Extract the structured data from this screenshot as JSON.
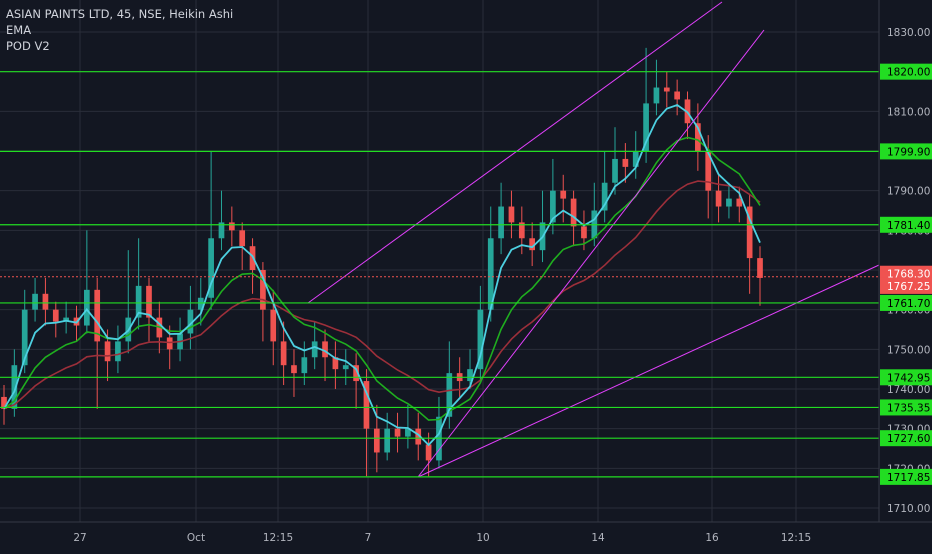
{
  "legend": {
    "symbol_line": "ASIAN PAINTS LTD, 45, NSE, Heikin Ashi",
    "indicator_1": "EMA",
    "indicator_2": "POD V2"
  },
  "colors": {
    "background": "#131722",
    "grid": "#2a2e39",
    "up": "#26a69a",
    "down": "#ef5350",
    "level": "#22dd22",
    "channel": "#e040fb",
    "ema_fast": "#4dd0e1",
    "ema_mid": "#1fae1f",
    "ema_slow": "#9c2f3a",
    "price_line": "#ef5350"
  },
  "chart_data": {
    "type": "candlestick",
    "x_tick_labels": [
      "27",
      "Oct",
      "12:15",
      "7",
      "10",
      "14",
      "16",
      "12:15"
    ],
    "y_tick_labels": [
      "1830.00",
      "1820.00",
      "1810.00",
      "1800.00",
      "1790.00",
      "1780.00",
      "1770.00",
      "1760.00",
      "1750.00",
      "1740.00",
      "1730.00",
      "1720.00",
      "1710.00"
    ],
    "ylim": [
      1706,
      1836
    ],
    "grid": true,
    "horizontal_levels": [
      {
        "value": 1820.0,
        "label": "1820.00"
      },
      {
        "value": 1799.9,
        "label": "1799.90"
      },
      {
        "value": 1781.4,
        "label": "1781.40"
      },
      {
        "value": 1761.7,
        "label": "1761.70"
      },
      {
        "value": 1742.95,
        "label": "1742.95"
      },
      {
        "value": 1735.35,
        "label": "1735.35"
      },
      {
        "value": 1727.6,
        "label": "1727.60"
      },
      {
        "value": 1717.85,
        "label": "1717.85"
      }
    ],
    "last_price": {
      "value": 1768.3,
      "label": "1768.30"
    },
    "secondary_price": {
      "value": 1767.25,
      "label": "1767.25"
    },
    "candles": [
      [
        1738,
        1735,
        1741,
        1731
      ],
      [
        1735,
        1746,
        1750,
        1733
      ],
      [
        1746,
        1760,
        1765,
        1744
      ],
      [
        1760,
        1764,
        1768,
        1757
      ],
      [
        1764,
        1760,
        1768,
        1756
      ],
      [
        1760,
        1757,
        1762,
        1753
      ],
      [
        1757,
        1758,
        1762,
        1754
      ],
      [
        1758,
        1756,
        1761,
        1752
      ],
      [
        1756,
        1765,
        1780,
        1754
      ],
      [
        1765,
        1752,
        1768,
        1735
      ],
      [
        1752,
        1747,
        1755,
        1742
      ],
      [
        1747,
        1752,
        1756,
        1744
      ],
      [
        1752,
        1758,
        1775,
        1749
      ],
      [
        1758,
        1766,
        1778,
        1755
      ],
      [
        1766,
        1758,
        1768,
        1752
      ],
      [
        1758,
        1753,
        1762,
        1749
      ],
      [
        1753,
        1750,
        1756,
        1745
      ],
      [
        1750,
        1754,
        1758,
        1747
      ],
      [
        1754,
        1760,
        1766,
        1750
      ],
      [
        1760,
        1763,
        1768,
        1756
      ],
      [
        1763,
        1778,
        1800,
        1760
      ],
      [
        1778,
        1782,
        1790,
        1775
      ],
      [
        1782,
        1780,
        1786,
        1776
      ],
      [
        1780,
        1776,
        1782,
        1770
      ],
      [
        1776,
        1770,
        1778,
        1764
      ],
      [
        1770,
        1760,
        1772,
        1752
      ],
      [
        1760,
        1752,
        1765,
        1746
      ],
      [
        1752,
        1746,
        1757,
        1741
      ],
      [
        1746,
        1744,
        1750,
        1738
      ],
      [
        1744,
        1748,
        1752,
        1741
      ],
      [
        1748,
        1752,
        1757,
        1745
      ],
      [
        1752,
        1748,
        1755,
        1742
      ],
      [
        1748,
        1745,
        1752,
        1740
      ],
      [
        1745,
        1746,
        1750,
        1741
      ],
      [
        1746,
        1742,
        1749,
        1735
      ],
      [
        1742,
        1730,
        1745,
        1718
      ],
      [
        1730,
        1724,
        1736,
        1719
      ],
      [
        1724,
        1730,
        1734,
        1722
      ],
      [
        1730,
        1728,
        1734,
        1724
      ],
      [
        1728,
        1730,
        1736,
        1725
      ],
      [
        1730,
        1726,
        1734,
        1722
      ],
      [
        1726,
        1722,
        1729,
        1718
      ],
      [
        1722,
        1733,
        1738,
        1720
      ],
      [
        1733,
        1744,
        1752,
        1730
      ],
      [
        1744,
        1742,
        1748,
        1738
      ],
      [
        1742,
        1745,
        1750,
        1740
      ],
      [
        1745,
        1760,
        1766,
        1742
      ],
      [
        1760,
        1778,
        1786,
        1757
      ],
      [
        1778,
        1786,
        1792,
        1774
      ],
      [
        1786,
        1782,
        1790,
        1778
      ],
      [
        1782,
        1778,
        1786,
        1774
      ],
      [
        1778,
        1775,
        1782,
        1771
      ],
      [
        1775,
        1782,
        1790,
        1772
      ],
      [
        1782,
        1790,
        1798,
        1779
      ],
      [
        1790,
        1788,
        1794,
        1782
      ],
      [
        1788,
        1781,
        1790,
        1776
      ],
      [
        1781,
        1778,
        1785,
        1775
      ],
      [
        1778,
        1785,
        1792,
        1776
      ],
      [
        1785,
        1792,
        1800,
        1782
      ],
      [
        1792,
        1798,
        1806,
        1789
      ],
      [
        1798,
        1796,
        1802,
        1792
      ],
      [
        1796,
        1800,
        1805,
        1793
      ],
      [
        1800,
        1812,
        1826,
        1797
      ],
      [
        1812,
        1816,
        1823,
        1809
      ],
      [
        1816,
        1815,
        1820,
        1811
      ],
      [
        1815,
        1813,
        1818,
        1809
      ],
      [
        1813,
        1807,
        1815,
        1803
      ],
      [
        1807,
        1800,
        1812,
        1795
      ],
      [
        1800,
        1790,
        1804,
        1783
      ],
      [
        1790,
        1786,
        1794,
        1782
      ],
      [
        1786,
        1788,
        1792,
        1783
      ],
      [
        1788,
        1786,
        1791,
        1782
      ],
      [
        1786,
        1773,
        1789,
        1764
      ],
      [
        1773,
        1768,
        1776,
        1761
      ]
    ]
  }
}
